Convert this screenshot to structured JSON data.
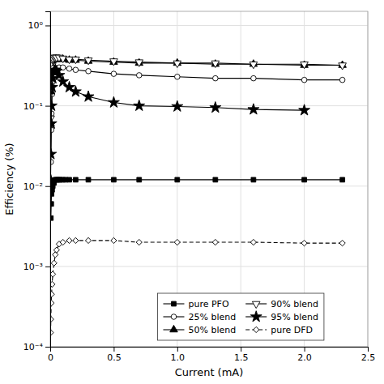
{
  "chart_data": {
    "type": "line",
    "xlabel": "Current (mA)",
    "ylabel": "Efficiency (%)",
    "log": "y",
    "grid": true,
    "legend": "lower center",
    "xlim": [
      0,
      2.5
    ],
    "xticks": [
      0,
      0.5,
      {
        "value": 1,
        "label": "1.0"
      },
      1.5,
      {
        "value": 2,
        "label": "2.0"
      },
      2.5
    ],
    "ylim": [
      0.0001,
      1.5
    ],
    "yticks": [
      {
        "value": 0.0001,
        "label": "10⁻⁴"
      },
      {
        "value": 0.001,
        "label": "10⁻³"
      },
      {
        "value": 0.01,
        "label": "10⁻²"
      },
      {
        "value": 0.1,
        "label": "10⁻¹"
      },
      {
        "value": 1,
        "label": "10⁰"
      }
    ],
    "series": [
      {
        "name": "pure PFO",
        "color": "black",
        "marker": "square",
        "line_style": "solid",
        "x": [
          0.005,
          0.008,
          0.01,
          0.015,
          0.02,
          0.025,
          0.03,
          0.04,
          0.05,
          0.06,
          0.07,
          0.08,
          0.1,
          0.12,
          0.15,
          0.2,
          0.3,
          0.5,
          0.7,
          1.0,
          1.3,
          1.6,
          2.0,
          2.3
        ],
        "values": [
          0.004,
          0.006,
          0.008,
          0.009,
          0.01,
          0.011,
          0.011,
          0.012,
          0.012,
          0.012,
          0.012,
          0.012,
          0.012,
          0.012,
          0.012,
          0.012,
          0.012,
          0.012,
          0.012,
          0.012,
          0.012,
          0.012,
          0.012,
          0.012
        ]
      },
      {
        "name": "25% blend",
        "color": "black",
        "marker": "circle-open",
        "line_style": "solid",
        "x": [
          0.005,
          0.008,
          0.01,
          0.015,
          0.02,
          0.03,
          0.04,
          0.05,
          0.07,
          0.1,
          0.15,
          0.2,
          0.3,
          0.5,
          0.7,
          1.0,
          1.3,
          1.6,
          2.0,
          2.3
        ],
        "values": [
          0.02,
          0.05,
          0.08,
          0.14,
          0.2,
          0.26,
          0.28,
          0.29,
          0.3,
          0.3,
          0.29,
          0.28,
          0.27,
          0.25,
          0.24,
          0.23,
          0.22,
          0.22,
          0.21,
          0.21
        ]
      },
      {
        "name": "50% blend",
        "color": "black",
        "marker": "triangle-up",
        "line_style": "solid",
        "x": [
          0.003,
          0.005,
          0.008,
          0.01,
          0.015,
          0.02,
          0.03,
          0.04,
          0.05,
          0.07,
          0.1,
          0.15,
          0.2,
          0.3,
          0.5,
          0.7,
          1.0,
          1.3,
          1.6,
          2.0,
          2.3
        ],
        "values": [
          0.06,
          0.15,
          0.27,
          0.32,
          0.36,
          0.37,
          0.38,
          0.38,
          0.38,
          0.38,
          0.38,
          0.37,
          0.37,
          0.36,
          0.35,
          0.34,
          0.34,
          0.33,
          0.33,
          0.32,
          0.32
        ]
      },
      {
        "name": "90% blend",
        "color": "black",
        "marker": "triangle-down-open",
        "line_style": "solid",
        "x": [
          0.003,
          0.005,
          0.008,
          0.01,
          0.015,
          0.02,
          0.03,
          0.04,
          0.05,
          0.07,
          0.1,
          0.15,
          0.2,
          0.3,
          0.5,
          0.7,
          1.0,
          1.3,
          1.6,
          2.0,
          2.3
        ],
        "values": [
          0.07,
          0.17,
          0.3,
          0.35,
          0.38,
          0.39,
          0.4,
          0.4,
          0.4,
          0.4,
          0.39,
          0.38,
          0.38,
          0.37,
          0.36,
          0.35,
          0.34,
          0.34,
          0.33,
          0.33,
          0.32
        ]
      },
      {
        "name": "95% blend",
        "color": "black",
        "marker": "star",
        "line_style": "solid",
        "x": [
          0.003,
          0.005,
          0.008,
          0.01,
          0.015,
          0.02,
          0.03,
          0.04,
          0.05,
          0.07,
          0.1,
          0.15,
          0.2,
          0.3,
          0.5,
          0.7,
          1.0,
          1.3,
          1.6,
          2.0
        ],
        "values": [
          0.012,
          0.025,
          0.06,
          0.1,
          0.17,
          0.22,
          0.27,
          0.28,
          0.27,
          0.24,
          0.2,
          0.17,
          0.15,
          0.13,
          0.11,
          0.1,
          0.098,
          0.095,
          0.09,
          0.088
        ]
      },
      {
        "name": "pure DFD",
        "color": "black",
        "marker": "diamond-open",
        "line_style": "dashed",
        "x": [
          0.003,
          0.005,
          0.008,
          0.01,
          0.015,
          0.02,
          0.03,
          0.04,
          0.05,
          0.07,
          0.1,
          0.15,
          0.2,
          0.3,
          0.5,
          0.7,
          1.0,
          1.3,
          1.6,
          2.0,
          2.3
        ],
        "values": [
          0.00015,
          0.00022,
          0.00035,
          0.00045,
          0.0006,
          0.0008,
          0.0011,
          0.0014,
          0.0016,
          0.0019,
          0.002,
          0.0021,
          0.0021,
          0.0021,
          0.0021,
          0.002,
          0.002,
          0.002,
          0.002,
          0.00195,
          0.00195
        ]
      }
    ]
  }
}
